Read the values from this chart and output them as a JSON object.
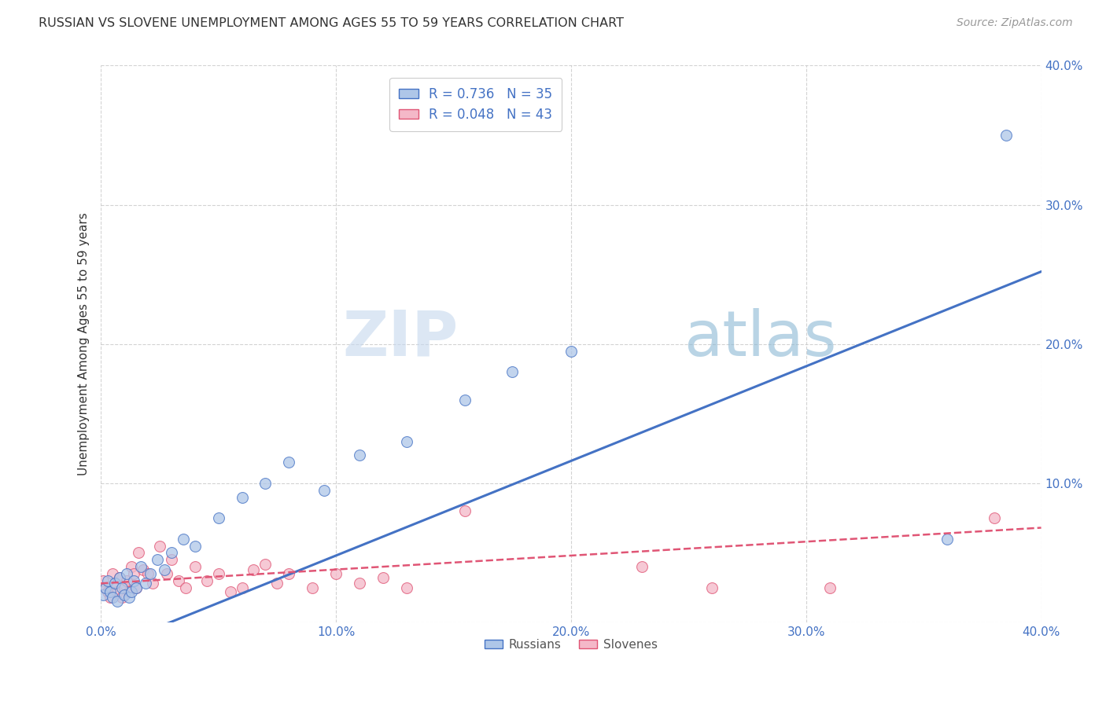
{
  "title": "RUSSIAN VS SLOVENE UNEMPLOYMENT AMONG AGES 55 TO 59 YEARS CORRELATION CHART",
  "source": "Source: ZipAtlas.com",
  "ylabel": "Unemployment Among Ages 55 to 59 years",
  "xlim": [
    0.0,
    0.4
  ],
  "ylim": [
    0.0,
    0.4
  ],
  "xticks": [
    0.0,
    0.1,
    0.2,
    0.3,
    0.4
  ],
  "yticks": [
    0.0,
    0.1,
    0.2,
    0.3,
    0.4
  ],
  "xtick_labels": [
    "0.0%",
    "10.0%",
    "20.0%",
    "30.0%",
    "40.0%"
  ],
  "ytick_labels": [
    "",
    "10.0%",
    "20.0%",
    "30.0%",
    "40.0%"
  ],
  "russian_color": "#aec6e8",
  "slovene_color": "#f4b8c8",
  "russian_line_color": "#4472c4",
  "slovene_line_color": "#e05575",
  "background_color": "#ffffff",
  "grid_color": "#c8c8c8",
  "watermark_zip": "ZIP",
  "watermark_atlas": "atlas",
  "legend_R_russian": "0.736",
  "legend_N_russian": "35",
  "legend_R_slovene": "0.048",
  "legend_N_slovene": "43",
  "russian_x": [
    0.001,
    0.002,
    0.003,
    0.004,
    0.005,
    0.006,
    0.007,
    0.008,
    0.009,
    0.01,
    0.011,
    0.012,
    0.013,
    0.014,
    0.015,
    0.017,
    0.019,
    0.021,
    0.024,
    0.027,
    0.03,
    0.035,
    0.04,
    0.05,
    0.06,
    0.07,
    0.08,
    0.095,
    0.11,
    0.13,
    0.155,
    0.175,
    0.2,
    0.36,
    0.385
  ],
  "russian_y": [
    0.02,
    0.025,
    0.03,
    0.022,
    0.018,
    0.028,
    0.015,
    0.032,
    0.025,
    0.02,
    0.035,
    0.018,
    0.022,
    0.03,
    0.025,
    0.04,
    0.028,
    0.035,
    0.045,
    0.038,
    0.05,
    0.06,
    0.055,
    0.075,
    0.09,
    0.1,
    0.115,
    0.095,
    0.12,
    0.13,
    0.16,
    0.18,
    0.195,
    0.06,
    0.35
  ],
  "slovene_x": [
    0.001,
    0.002,
    0.003,
    0.004,
    0.005,
    0.006,
    0.007,
    0.008,
    0.009,
    0.01,
    0.011,
    0.012,
    0.013,
    0.014,
    0.015,
    0.016,
    0.018,
    0.02,
    0.022,
    0.025,
    0.028,
    0.03,
    0.033,
    0.036,
    0.04,
    0.045,
    0.05,
    0.055,
    0.06,
    0.065,
    0.07,
    0.075,
    0.08,
    0.09,
    0.1,
    0.11,
    0.12,
    0.13,
    0.155,
    0.23,
    0.26,
    0.31,
    0.38
  ],
  "slovene_y": [
    0.03,
    0.025,
    0.022,
    0.018,
    0.035,
    0.028,
    0.022,
    0.032,
    0.018,
    0.025,
    0.03,
    0.022,
    0.04,
    0.035,
    0.025,
    0.05,
    0.038,
    0.035,
    0.028,
    0.055,
    0.035,
    0.045,
    0.03,
    0.025,
    0.04,
    0.03,
    0.035,
    0.022,
    0.025,
    0.038,
    0.042,
    0.028,
    0.035,
    0.025,
    0.035,
    0.028,
    0.032,
    0.025,
    0.08,
    0.04,
    0.025,
    0.025,
    0.075
  ],
  "russian_slope": 0.68,
  "russian_intercept": -0.02,
  "slovene_slope": 0.1,
  "slovene_intercept": 0.028
}
